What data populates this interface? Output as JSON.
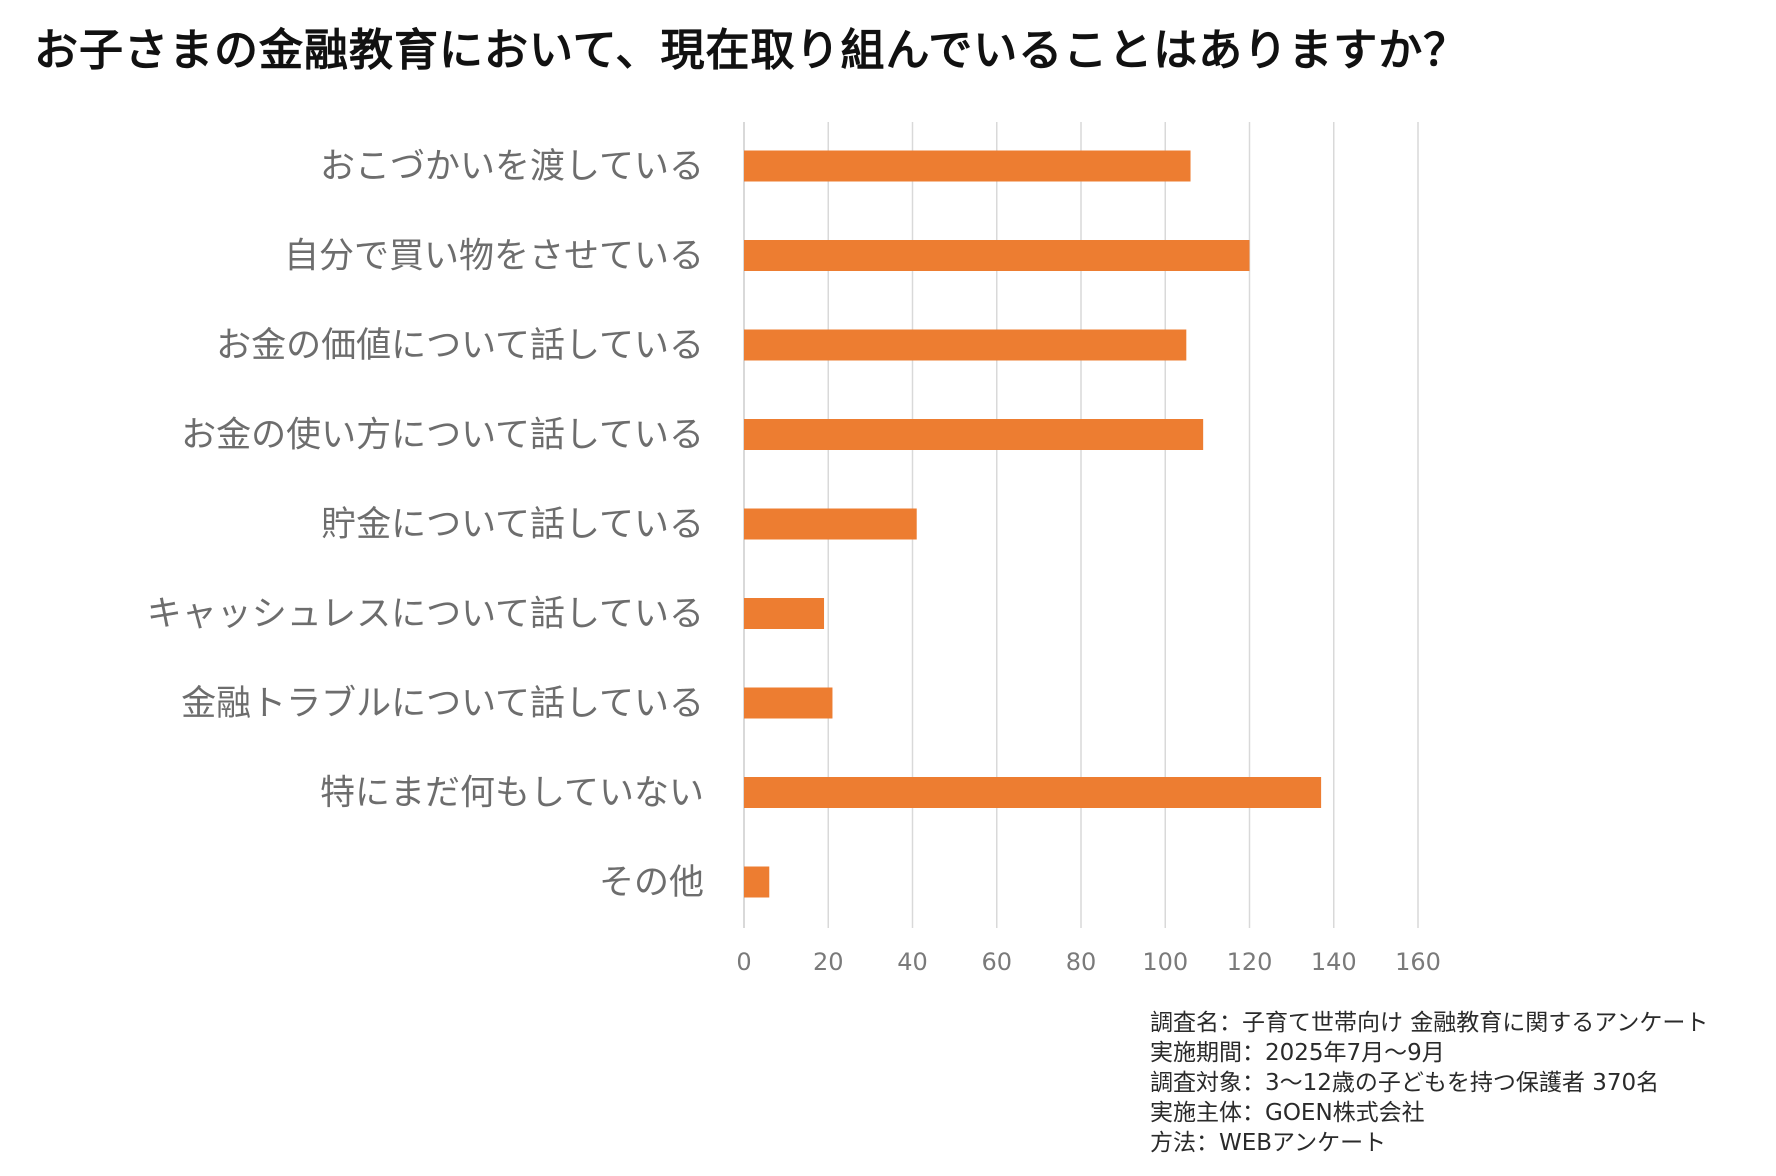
{
  "title": "お子さまの金融教育において、現在取り組んでいることはありますか？",
  "colors": {
    "bar": "#ED7D31",
    "grid": "#D9D9D9",
    "label": "#6D6D6D"
  },
  "chart_data": {
    "type": "bar",
    "orientation": "horizontal",
    "title": "お子さまの金融教育において、現在取り組んでいることはありますか？",
    "categories": [
      "おこづかいを渡している",
      "自分で買い物をさせている",
      "お金の価値について話している",
      "お金の使い方について話している",
      "貯金について話している",
      "キャッシュレスについて話している",
      "金融トラブルについて話している",
      "特にまだ何もしていない",
      "その他"
    ],
    "values": [
      106,
      120,
      105,
      109,
      41,
      19,
      21,
      137,
      6
    ],
    "xlim": [
      0,
      160
    ],
    "xticks": [
      0,
      20,
      40,
      60,
      80,
      100,
      120,
      140,
      160
    ],
    "xlabel": "",
    "ylabel": "",
    "grid": true,
    "legend": "none"
  },
  "notes": {
    "line1": "調査名：子育て世帯向け 金融教育に関するアンケート",
    "line2": "実施期間：2025年7月～9月",
    "line3": "調査対象：3～12歳の子どもを持つ保護者 370名",
    "line4": "実施主体：GOEN株式会社",
    "line5": "方法：WEBアンケート"
  }
}
